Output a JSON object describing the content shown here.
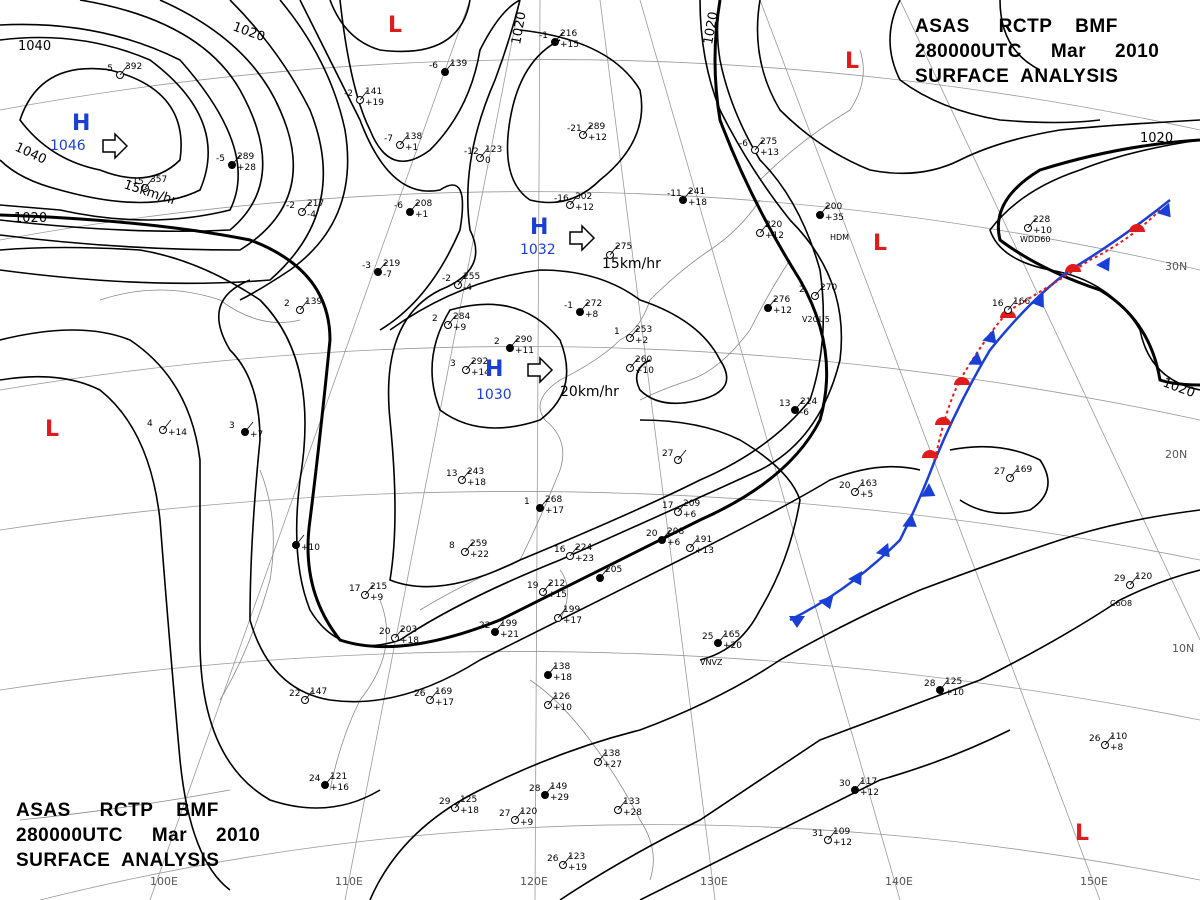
{
  "title": {
    "line1": "ASAS     RCTP    BMF",
    "line2": "280000UTC     Mar     2010",
    "line3": "SURFACE  ANALYSIS"
  },
  "colors": {
    "high_center": "#1a3fd6",
    "low_center": "#e01b1b",
    "isobar": "#000000",
    "cold_front": "#1a3fd6",
    "warm_front": "#e01b1b",
    "grid": "#777777"
  },
  "pressure_systems": [
    {
      "type": "H",
      "letter": "H",
      "value": "1046",
      "motion": "15km/hr"
    },
    {
      "type": "H",
      "letter": "H",
      "value": "1032",
      "motion": "15km/hr"
    },
    {
      "type": "H",
      "letter": "H",
      "value": "1030",
      "motion": "20km/hr"
    },
    {
      "type": "L",
      "letter": "L",
      "value": ""
    },
    {
      "type": "L",
      "letter": "L",
      "value": ""
    },
    {
      "type": "L",
      "letter": "L",
      "value": ""
    },
    {
      "type": "L",
      "letter": "L",
      "value": ""
    },
    {
      "type": "L",
      "letter": "L",
      "value": ""
    }
  ],
  "isobar_labels": [
    "1040",
    "1020",
    "1040",
    "1020",
    "1020",
    "1020",
    "1020",
    "1020"
  ],
  "longitude_labels": [
    "100E",
    "110E",
    "120E",
    "130E",
    "140E",
    "150E"
  ],
  "latitude_labels": [
    "30N",
    "20N",
    "10N"
  ],
  "station_plots": [
    {
      "temp": "-1",
      "pressure": "216",
      "tendency": "+15"
    },
    {
      "temp": "-5",
      "pressure": "392",
      "tendency": ""
    },
    {
      "temp": "-2",
      "pressure": "141",
      "tendency": "+19"
    },
    {
      "temp": "-6",
      "pressure": "139",
      "tendency": ""
    },
    {
      "temp": "-7",
      "pressure": "138",
      "tendency": "+1"
    },
    {
      "temp": "-12",
      "pressure": "123",
      "tendency": "0"
    },
    {
      "temp": "-5",
      "pressure": "289",
      "tendency": "+28"
    },
    {
      "temp": "-15",
      "pressure": "357",
      "tendency": ""
    },
    {
      "temp": "-2",
      "pressure": "217",
      "tendency": "-4"
    },
    {
      "temp": "-6",
      "pressure": "208",
      "tendency": "+1"
    },
    {
      "temp": "-21",
      "pressure": "289",
      "tendency": "+12"
    },
    {
      "temp": "-16",
      "pressure": "302",
      "tendency": "+12"
    },
    {
      "temp": "-11",
      "pressure": "241",
      "tendency": "+18"
    },
    {
      "temp": "-6",
      "pressure": "275",
      "tendency": "+13"
    },
    {
      "temp": "",
      "pressure": "275",
      "tendency": ""
    },
    {
      "temp": "-3",
      "pressure": "219",
      "tendency": "-7"
    },
    {
      "temp": "-2",
      "pressure": "255",
      "tendency": "-4"
    },
    {
      "temp": "2",
      "pressure": "139",
      "tendency": ""
    },
    {
      "temp": "-1",
      "pressure": "272",
      "tendency": "+8"
    },
    {
      "temp": "1",
      "pressure": "253",
      "tendency": "+2"
    },
    {
      "temp": "2",
      "pressure": "284",
      "tendency": "+9"
    },
    {
      "temp": "2",
      "pressure": "290",
      "tendency": "+11"
    },
    {
      "temp": "3",
      "pressure": "292",
      "tendency": "+14"
    },
    {
      "temp": "",
      "pressure": "260",
      "tendency": "+10"
    },
    {
      "temp": "",
      "pressure": "200",
      "tendency": "+35"
    },
    {
      "temp": "",
      "pressure": "220",
      "tendency": "+12"
    },
    {
      "temp": "2",
      "pressure": "270",
      "tendency": ""
    },
    {
      "temp": "",
      "pressure": "276",
      "tendency": "+12"
    },
    {
      "temp": "",
      "pressure": "228",
      "tendency": "+10"
    },
    {
      "temp": "16",
      "pressure": "166",
      "tendency": ""
    },
    {
      "temp": "3",
      "pressure": "",
      "tendency": "+7"
    },
    {
      "temp": "4",
      "pressure": "",
      "tendency": "+14"
    },
    {
      "temp": "13",
      "pressure": "243",
      "tendency": "+18"
    },
    {
      "temp": "1",
      "pressure": "268",
      "tendency": "+17"
    },
    {
      "temp": "8",
      "pressure": "259",
      "tendency": "+22"
    },
    {
      "temp": "17",
      "pressure": "209",
      "tendency": "+6"
    },
    {
      "temp": "20",
      "pressure": "208",
      "tendency": "+6"
    },
    {
      "temp": "",
      "pressure": "191",
      "tendency": "+13"
    },
    {
      "temp": "16",
      "pressure": "224",
      "tendency": "+23"
    },
    {
      "temp": "",
      "pressure": "205",
      "tendency": ""
    },
    {
      "temp": "19",
      "pressure": "212",
      "tendency": "+15"
    },
    {
      "temp": "",
      "pressure": "199",
      "tendency": "+17"
    },
    {
      "temp": "22",
      "pressure": "199",
      "tendency": "+21"
    },
    {
      "temp": "17",
      "pressure": "215",
      "tendency": "+9"
    },
    {
      "temp": "20",
      "pressure": "203",
      "tendency": "+18"
    },
    {
      "temp": "",
      "pressure": "",
      "tendency": "+10"
    },
    {
      "temp": "26",
      "pressure": "169",
      "tendency": "+17"
    },
    {
      "temp": "22",
      "pressure": "147",
      "tendency": ""
    },
    {
      "temp": "24",
      "pressure": "121",
      "tendency": "+16"
    },
    {
      "temp": "29",
      "pressure": "125",
      "tendency": "+18"
    },
    {
      "temp": "27",
      "pressure": "120",
      "tendency": "+9"
    },
    {
      "temp": "28",
      "pressure": "149",
      "tendency": "+29"
    },
    {
      "temp": "",
      "pressure": "133",
      "tendency": "+28"
    },
    {
      "temp": "26",
      "pressure": "123",
      "tendency": "+19"
    },
    {
      "temp": "",
      "pressure": "138",
      "tendency": "+18"
    },
    {
      "temp": "",
      "pressure": "126",
      "tendency": "+10"
    },
    {
      "temp": "",
      "pressure": "138",
      "tendency": "+27"
    },
    {
      "temp": "25",
      "pressure": "165",
      "tendency": "+20"
    },
    {
      "temp": "20",
      "pressure": "163",
      "tendency": "+5"
    },
    {
      "temp": "27",
      "pressure": "169",
      "tendency": ""
    },
    {
      "temp": "28",
      "pressure": "125",
      "tendency": "+10"
    },
    {
      "temp": "29",
      "pressure": "120",
      "tendency": ""
    },
    {
      "temp": "26",
      "pressure": "110",
      "tendency": "+8"
    },
    {
      "temp": "30",
      "pressure": "117",
      "tendency": "+12"
    },
    {
      "temp": "31",
      "pressure": "109",
      "tendency": "+12"
    },
    {
      "temp": "27",
      "pressure": "",
      "tendency": ""
    },
    {
      "temp": "13",
      "pressure": "214",
      "tendency": "-6"
    }
  ],
  "station_ids": [
    "WDD60",
    "V2OU5",
    "HDM",
    "VNVZ",
    "C6O8"
  ]
}
